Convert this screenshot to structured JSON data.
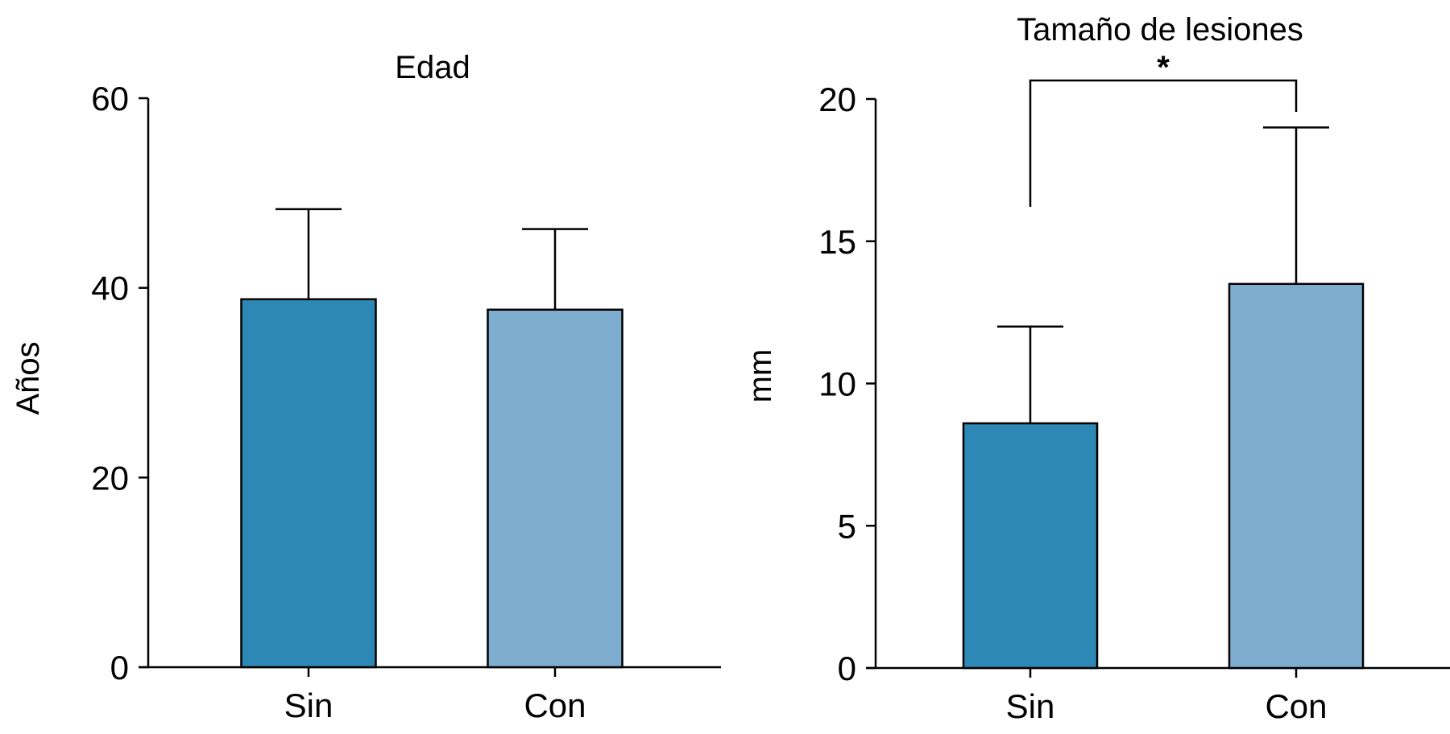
{
  "chart_data": [
    {
      "type": "bar",
      "title": "Edad",
      "xlabel": "",
      "ylabel": "Años",
      "categories": [
        "Sin",
        "Con"
      ],
      "values": [
        38.8,
        37.7
      ],
      "error_upper": [
        48.3,
        46.2
      ],
      "ylim": [
        0,
        60
      ],
      "yticks": [
        "0",
        "20",
        "40",
        "60"
      ],
      "ytick_values": [
        0,
        20,
        40,
        60
      ],
      "colors": [
        "#2e88b5",
        "#7fadd0"
      ],
      "grid": false,
      "annotations": []
    },
    {
      "type": "bar",
      "title": "Tamaño de lesiones",
      "xlabel": "",
      "ylabel": "mm",
      "categories": [
        "Sin",
        "Con"
      ],
      "values": [
        8.6,
        13.5
      ],
      "error_upper": [
        12.0,
        19.0
      ],
      "ylim": [
        0,
        20
      ],
      "yticks": [
        "0",
        "5",
        "10",
        "15",
        "20"
      ],
      "ytick_values": [
        0,
        5,
        10,
        15,
        20
      ],
      "colors": [
        "#2e88b5",
        "#7fadd0"
      ],
      "grid": false,
      "annotations": [
        {
          "text": "*",
          "between": [
            "Sin",
            "Con"
          ]
        }
      ]
    }
  ]
}
